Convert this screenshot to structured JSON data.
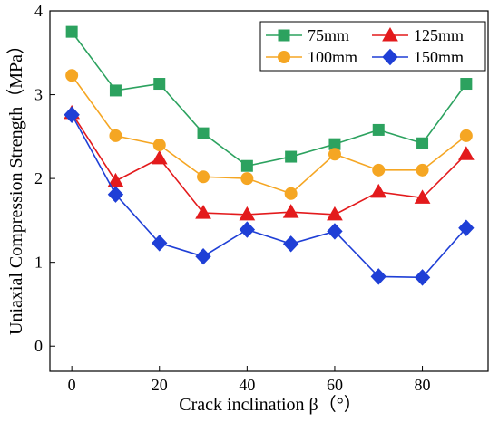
{
  "chart_data": {
    "type": "line",
    "title": "",
    "xlabel": "Crack inclination β（°）",
    "ylabel": "Uniaxial Compression Strength（MPa）",
    "xlim": [
      -5,
      95
    ],
    "ylim": [
      -0.3,
      4.0
    ],
    "x_ticks": [
      0,
      20,
      40,
      60,
      80
    ],
    "y_ticks": [
      0,
      1,
      2,
      3,
      4
    ],
    "grid": false,
    "legend_position": "top-right",
    "x": [
      0,
      10,
      20,
      30,
      40,
      50,
      60,
      70,
      80,
      90
    ],
    "series": [
      {
        "name": "75mm",
        "color": "#2ca25f",
        "marker": "square",
        "values": [
          3.75,
          3.05,
          3.13,
          2.54,
          2.15,
          2.26,
          2.41,
          2.58,
          2.42,
          3.13
        ]
      },
      {
        "name": "125mm",
        "color": "#e31a1c",
        "marker": "triangle",
        "values": [
          2.78,
          1.97,
          2.24,
          1.59,
          1.57,
          1.6,
          1.57,
          1.84,
          1.77,
          2.29
        ]
      },
      {
        "name": "100mm",
        "color": "#f5a623",
        "marker": "circle",
        "values": [
          3.23,
          2.51,
          2.4,
          2.02,
          2.0,
          1.82,
          2.29,
          2.1,
          2.1,
          2.51
        ]
      },
      {
        "name": "150mm",
        "color": "#1f3fd6",
        "marker": "diamond",
        "values": [
          2.76,
          1.81,
          1.23,
          1.07,
          1.39,
          1.22,
          1.37,
          0.83,
          0.82,
          1.41
        ]
      }
    ]
  }
}
